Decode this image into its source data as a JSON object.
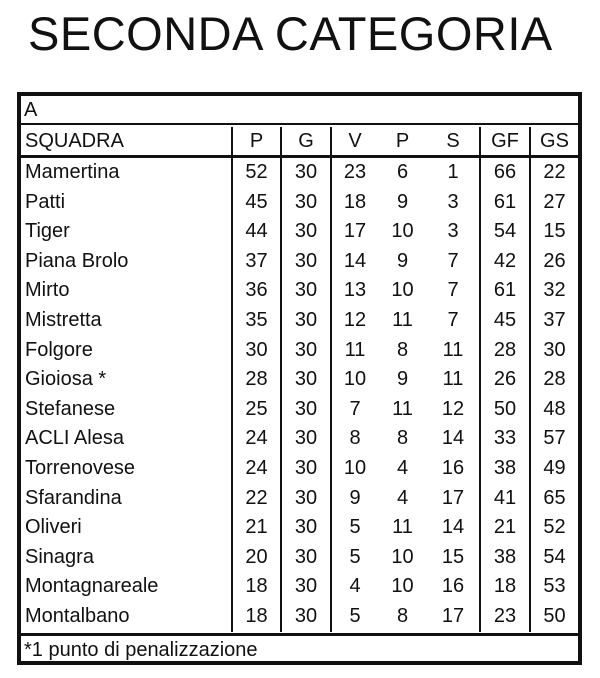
{
  "title": "SECONDA CATEGORIA",
  "group": "A",
  "columns": [
    "SQUADRA",
    "P",
    "G",
    "V",
    "P",
    "S",
    "GF",
    "GS"
  ],
  "rows": [
    [
      "Mamertina",
      "52",
      "30",
      "23",
      "6",
      "1",
      "66",
      "22"
    ],
    [
      "Patti",
      "45",
      "30",
      "18",
      "9",
      "3",
      "61",
      "27"
    ],
    [
      "Tiger",
      "44",
      "30",
      "17",
      "10",
      "3",
      "54",
      "15"
    ],
    [
      "Piana Brolo",
      "37",
      "30",
      "14",
      "9",
      "7",
      "42",
      "26"
    ],
    [
      "Mirto",
      "36",
      "30",
      "13",
      "10",
      "7",
      "61",
      "32"
    ],
    [
      "Mistretta",
      "35",
      "30",
      "12",
      "11",
      "7",
      "45",
      "37"
    ],
    [
      "Folgore",
      "30",
      "30",
      "11",
      "8",
      "11",
      "28",
      "30"
    ],
    [
      "Gioiosa *",
      "28",
      "30",
      "10",
      "9",
      "11",
      "26",
      "28"
    ],
    [
      "Stefanese",
      "25",
      "30",
      "7",
      "11",
      "12",
      "50",
      "48"
    ],
    [
      "ACLI  Alesa",
      "24",
      "30",
      "8",
      "8",
      "14",
      "33",
      "57"
    ],
    [
      "Torrenovese",
      "24",
      "30",
      "10",
      "4",
      "16",
      "38",
      "49"
    ],
    [
      "Sfarandina",
      "22",
      "30",
      "9",
      "4",
      "17",
      "41",
      "65"
    ],
    [
      "Oliveri",
      "21",
      "30",
      "5",
      "11",
      "14",
      "21",
      "52"
    ],
    [
      "Sinagra",
      "20",
      "30",
      "5",
      "10",
      "15",
      "38",
      "54"
    ],
    [
      "Montagnareale",
      "18",
      "30",
      "4",
      "10",
      "16",
      "18",
      "53"
    ],
    [
      "Montalbano",
      "18",
      "30",
      "5",
      "8",
      "17",
      "23",
      "50"
    ]
  ],
  "footnote": "*1 punto di penalizzazione"
}
